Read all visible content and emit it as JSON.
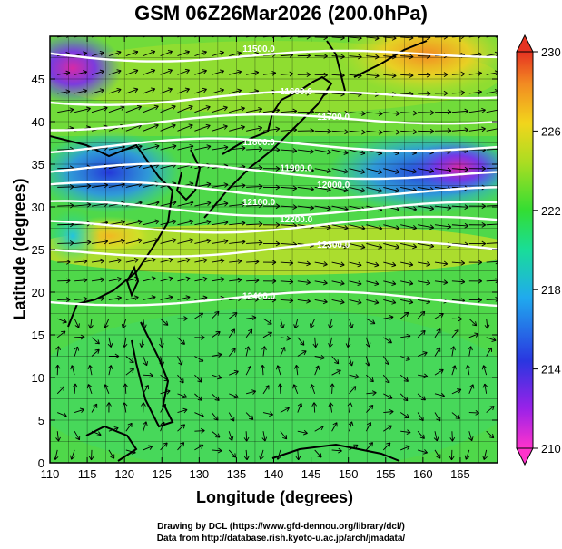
{
  "title": "GSM 06Z26Mar2026 (200.0hPa)",
  "x_axis_label": "Longitude (degrees)",
  "y_axis_label": "Latitude  (degrees)",
  "credits": [
    "Drawing by DCL (https://www.gfd-dennou.org/library/dcl/)",
    "Data from http://database.rish.kyoto-u.ac.jp/arch/jmadata/"
  ],
  "chart_data": {
    "type": "heatmap",
    "variable": "temperature field with geopotential height contours and wind vectors",
    "level": "200.0hPa",
    "xlim": [
      110,
      170
    ],
    "ylim": [
      0,
      50
    ],
    "x_ticks": [
      110,
      115,
      120,
      125,
      130,
      135,
      140,
      145,
      150,
      155,
      160,
      165
    ],
    "y_ticks": [
      0,
      5,
      10,
      15,
      20,
      25,
      30,
      35,
      40,
      45
    ],
    "colorbar": {
      "min": 210,
      "max": 230,
      "tick_labels": [
        210,
        214,
        218,
        222,
        226,
        230
      ]
    },
    "contours": [
      {
        "label": "11500.0",
        "lat": 48
      },
      {
        "label": "11600.0",
        "lat": 43
      },
      {
        "label": "11700.0",
        "lat": 40
      },
      {
        "label": "11800.0",
        "lat": 37
      },
      {
        "label": "11900.0",
        "lat": 34
      },
      {
        "label": "12000.0",
        "lat": 32
      },
      {
        "label": "12100.0",
        "lat": 30
      },
      {
        "label": "12200.0",
        "lat": 28
      },
      {
        "label": "12300.0",
        "lat": 25
      },
      {
        "label": "12400.0",
        "lat": 19
      }
    ]
  }
}
